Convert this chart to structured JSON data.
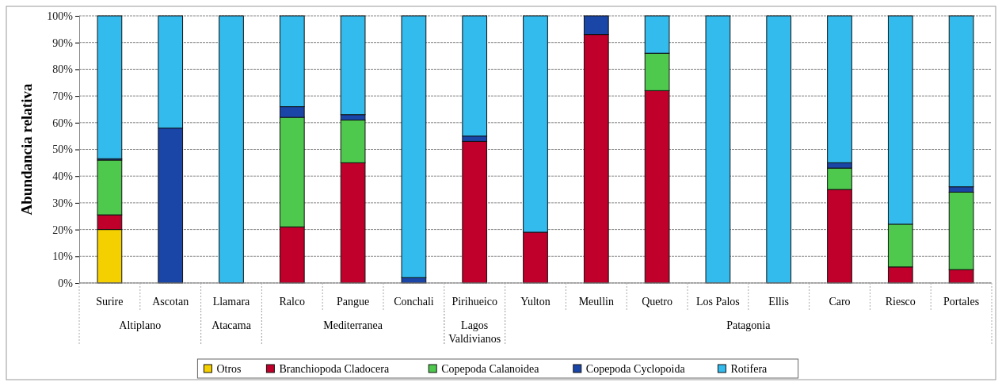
{
  "chart_data": {
    "type": "bar",
    "stacked": true,
    "ylabel": "Abundancia relativa",
    "categories": [
      "Surire",
      "Ascotan",
      "Llamara",
      "Ralco",
      "Pangue",
      "Conchali",
      "Pirihueico",
      "Yulton",
      "Meullin",
      "Quetro",
      "Los Palos",
      "Ellis",
      "Caro",
      "Riesco",
      "Portales"
    ],
    "series": [
      {
        "name": "Otros",
        "color": "#f5d000",
        "values": [
          20,
          0,
          0,
          0,
          0,
          0,
          0,
          0,
          0,
          0,
          0,
          0,
          0,
          0,
          0
        ]
      },
      {
        "name": "Branchiopoda Cladocera",
        "color": "#c0002a",
        "values": [
          5.5,
          0,
          0,
          21,
          45,
          0,
          53,
          19,
          93,
          72,
          0,
          0,
          35,
          6,
          5
        ]
      },
      {
        "name": "Copepoda Calanoidea",
        "color": "#4ec94e",
        "values": [
          20.5,
          0,
          0,
          41,
          16,
          0,
          0,
          0,
          0,
          14,
          0,
          0,
          8,
          16,
          29
        ]
      },
      {
        "name": "Copepoda Cyclopoida",
        "color": "#1a46a8",
        "values": [
          0.5,
          58,
          0,
          4,
          2,
          2,
          2,
          0,
          7,
          0,
          0,
          0,
          2,
          0,
          2
        ]
      },
      {
        "name": "Rotifera",
        "color": "#33bbee",
        "values": [
          53.5,
          42,
          100,
          34,
          37,
          98,
          45,
          81,
          0,
          14,
          100,
          100,
          55,
          78,
          64
        ]
      }
    ],
    "ylim": [
      0,
      100
    ],
    "yticks": [
      {
        "value": 0,
        "label": "0%"
      },
      {
        "value": 10,
        "label": "10%"
      },
      {
        "value": 20,
        "label": "20%"
      },
      {
        "value": 30,
        "label": "30%"
      },
      {
        "value": 40,
        "label": "40%"
      },
      {
        "value": 50,
        "label": "50%"
      },
      {
        "value": 60,
        "label": "60%"
      },
      {
        "value": 70,
        "label": "70%"
      },
      {
        "value": 80,
        "label": "80%"
      },
      {
        "value": 90,
        "label": "90%"
      },
      {
        "value": 100,
        "label": "100%"
      }
    ],
    "grid": "y",
    "legend": "bottom",
    "annotations": [
      "Altiplano",
      "Atacama",
      "Mediterranea",
      "Lagos Valdivianos",
      "Patagonia"
    ]
  }
}
